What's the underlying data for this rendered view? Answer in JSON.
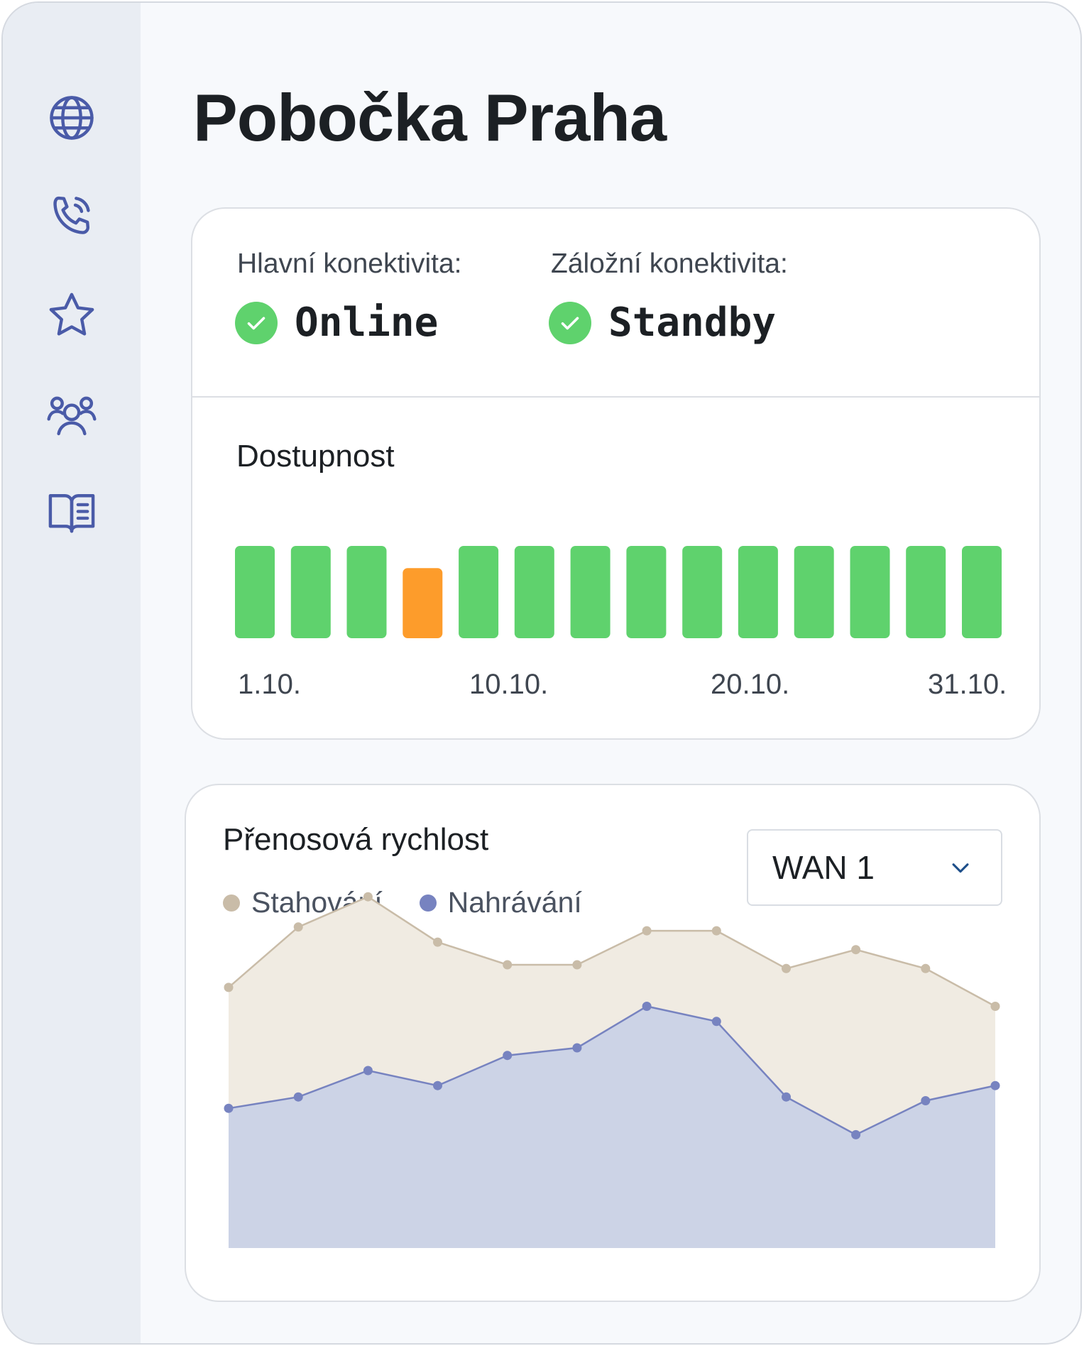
{
  "page": {
    "title": "Pobočka Praha"
  },
  "sidebar": {
    "items": [
      {
        "icon": "globe-icon"
      },
      {
        "icon": "phone-icon"
      },
      {
        "icon": "star-icon"
      },
      {
        "icon": "users-icon"
      },
      {
        "icon": "book-icon"
      }
    ],
    "icon_color": "#4a5ba8"
  },
  "connectivity": {
    "main": {
      "label": "Hlavní konektivita:",
      "status": "Online",
      "icon": "check-circle-icon"
    },
    "backup": {
      "label": "Záložní konektivita:",
      "status": "Standby",
      "icon": "check-circle-icon"
    },
    "ok_color": "#5fd26d"
  },
  "availability": {
    "title": "Dostupnost",
    "tick_labels": [
      "1.10.",
      "10.10.",
      "20.10.",
      "31.10."
    ],
    "colors": {
      "ok": "#5fd26d",
      "warning": "#fd9c2b"
    }
  },
  "speed": {
    "title": "Přenosová rychlost",
    "legend": [
      {
        "label": "Stahování",
        "color": "#c9bca8"
      },
      {
        "label": "Nahrávání",
        "color": "#7783c0"
      }
    ],
    "select": {
      "value": "WAN 1",
      "icon": "chevron-down-icon"
    }
  },
  "chart_data": [
    {
      "type": "bar",
      "title": "Dostupnost",
      "categories": [
        "1",
        "2",
        "3",
        "4",
        "5",
        "6",
        "7",
        "8",
        "9",
        "10",
        "11",
        "12",
        "13",
        "14"
      ],
      "values": [
        100,
        100,
        100,
        76,
        100,
        100,
        100,
        100,
        100,
        100,
        100,
        100,
        100,
        100
      ],
      "status": [
        "ok",
        "ok",
        "ok",
        "warning",
        "ok",
        "ok",
        "ok",
        "ok",
        "ok",
        "ok",
        "ok",
        "ok",
        "ok",
        "ok"
      ],
      "tick_labels": [
        "1.10.",
        "10.10.",
        "20.10.",
        "31.10."
      ],
      "ylim": [
        0,
        100
      ]
    },
    {
      "type": "area",
      "title": "Přenosová rychlost",
      "x": [
        1,
        2,
        3,
        4,
        5,
        6,
        7,
        8,
        9,
        10,
        11,
        12
      ],
      "series": [
        {
          "name": "Stahování",
          "values": [
            69,
            85,
            93,
            81,
            75,
            75,
            84,
            84,
            74,
            79,
            74,
            64
          ]
        },
        {
          "name": "Nahrávání",
          "values": [
            37,
            40,
            47,
            43,
            51,
            53,
            64,
            60,
            40,
            30,
            39,
            43
          ]
        }
      ],
      "ylim": [
        0,
        100
      ],
      "grid": false,
      "legend_position": "top-left"
    }
  ]
}
